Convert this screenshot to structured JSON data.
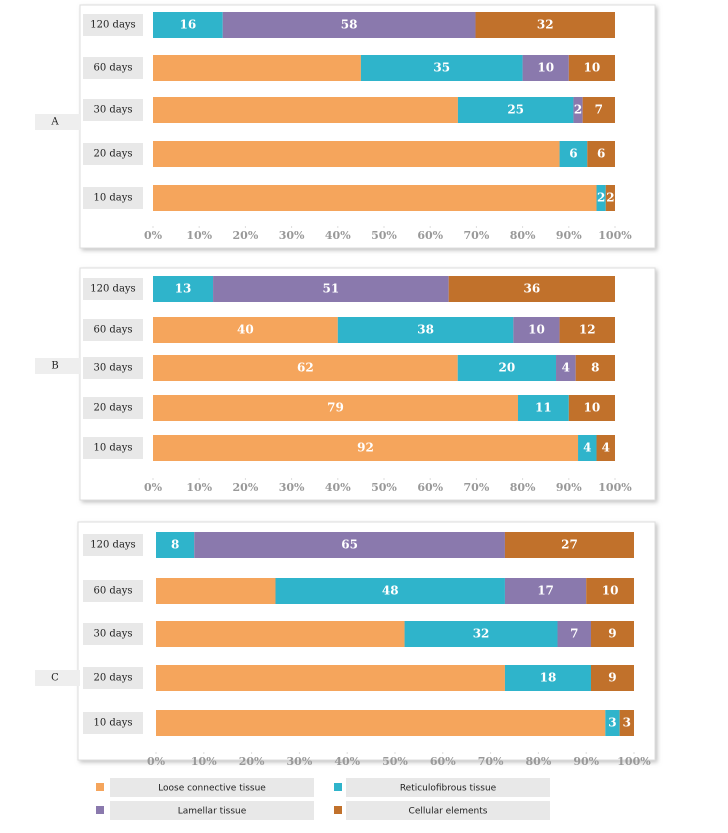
{
  "chart_data": [
    {
      "type": "bar",
      "orientation": "horizontal",
      "stacked": "percent",
      "label": "A",
      "categories": [
        "120 days",
        "60 days",
        "30 days",
        "20 days",
        "10 days"
      ],
      "series": [
        {
          "name": "Loose connective tissue",
          "color": "#f5a55c",
          "values": [
            0,
            45,
            66,
            88,
            96
          ],
          "value_labels": [
            null,
            null,
            null,
            null,
            null
          ]
        },
        {
          "name": "Reticulofibrous tissue",
          "color": "#2fb4cb",
          "values": [
            16,
            35,
            25,
            6,
            2
          ],
          "value_labels": [
            "16",
            "35",
            "25",
            "6",
            "2"
          ]
        },
        {
          "name": "Lamellar tissue",
          "color": "#8a79ad",
          "values": [
            58,
            10,
            2,
            0,
            0
          ],
          "value_labels": [
            "58",
            "10",
            "2",
            null,
            null
          ]
        },
        {
          "name": "Cellular elements",
          "color": "#c1712b",
          "values": [
            32,
            10,
            7,
            6,
            2
          ],
          "value_labels": [
            "32",
            "10",
            "7",
            "6",
            "2"
          ]
        }
      ],
      "xlim": [
        0,
        100
      ],
      "xticks": [
        {
          "value": 0,
          "label": "0%"
        },
        {
          "value": 10,
          "label": "10%"
        },
        {
          "value": 20,
          "label": "20%"
        },
        {
          "value": 30,
          "label": "30%"
        },
        {
          "value": 40,
          "label": "40%"
        },
        {
          "value": 50,
          "label": "50%"
        },
        {
          "value": 60,
          "label": "60%"
        },
        {
          "value": 70,
          "label": "70%"
        },
        {
          "value": 80,
          "label": "80%"
        },
        {
          "value": 90,
          "label": "90%"
        },
        {
          "value": 100,
          "label": "100%"
        }
      ]
    },
    {
      "type": "bar",
      "orientation": "horizontal",
      "stacked": "percent",
      "label": "B",
      "categories": [
        "120 days",
        "60 days",
        "30 days",
        "20 days",
        "10 days"
      ],
      "series": [
        {
          "name": "Loose connective tissue",
          "color": "#f5a55c",
          "values": [
            0,
            40,
            62,
            79,
            92
          ],
          "value_labels": [
            null,
            "40",
            "62",
            "79",
            "92"
          ]
        },
        {
          "name": "Reticulofibrous tissue",
          "color": "#2fb4cb",
          "values": [
            13,
            38,
            20,
            11,
            4
          ],
          "value_labels": [
            "13",
            "38",
            "20",
            "11",
            "4"
          ]
        },
        {
          "name": "Lamellar tissue",
          "color": "#8a79ad",
          "values": [
            51,
            10,
            4,
            0,
            0
          ],
          "value_labels": [
            "51",
            "10",
            "4",
            null,
            null
          ]
        },
        {
          "name": "Cellular elements",
          "color": "#c1712b",
          "values": [
            36,
            12,
            8,
            10,
            4
          ],
          "value_labels": [
            "36",
            "12",
            "8",
            "10",
            "4"
          ]
        }
      ],
      "xlim": [
        0,
        100
      ],
      "xticks": [
        {
          "value": 0,
          "label": "0%"
        },
        {
          "value": 10,
          "label": "10%"
        },
        {
          "value": 20,
          "label": "20%"
        },
        {
          "value": 30,
          "label": "30%"
        },
        {
          "value": 40,
          "label": "40%"
        },
        {
          "value": 50,
          "label": "50%"
        },
        {
          "value": 60,
          "label": "60%"
        },
        {
          "value": 70,
          "label": "70%"
        },
        {
          "value": 80,
          "label": "80%"
        },
        {
          "value": 90,
          "label": "90%"
        },
        {
          "value": 100,
          "label": "100%"
        }
      ]
    },
    {
      "type": "bar",
      "orientation": "horizontal",
      "stacked": "percent",
      "label": "C",
      "categories": [
        "120 days",
        "60 days",
        "30 days",
        "20 days",
        "10 days"
      ],
      "series": [
        {
          "name": "Loose connective tissue",
          "color": "#f5a55c",
          "values": [
            0,
            25,
            52,
            73,
            94
          ],
          "value_labels": [
            null,
            null,
            null,
            null,
            null
          ]
        },
        {
          "name": "Reticulofibrous tissue",
          "color": "#2fb4cb",
          "values": [
            8,
            48,
            32,
            18,
            3
          ],
          "value_labels": [
            "8",
            "48",
            "32",
            "18",
            "3"
          ]
        },
        {
          "name": "Lamellar tissue",
          "color": "#8a79ad",
          "values": [
            65,
            17,
            7,
            0,
            0
          ],
          "value_labels": [
            "65",
            "17",
            "7",
            null,
            null
          ]
        },
        {
          "name": "Cellular elements",
          "color": "#c1712b",
          "values": [
            27,
            10,
            9,
            9,
            3
          ],
          "value_labels": [
            "27",
            "10",
            "9",
            "9",
            "3"
          ]
        }
      ],
      "xlim": [
        0,
        100
      ],
      "xticks": [
        {
          "value": 0,
          "label": "0%"
        },
        {
          "value": 10,
          "label": "10%"
        },
        {
          "value": 20,
          "label": "20%"
        },
        {
          "value": 30,
          "label": "30%"
        },
        {
          "value": 40,
          "label": "40%"
        },
        {
          "value": 50,
          "label": "50%"
        },
        {
          "value": 60,
          "label": "60%"
        },
        {
          "value": 70,
          "label": "70%"
        },
        {
          "value": 80,
          "label": "80%"
        },
        {
          "value": 90,
          "label": "90%"
        },
        {
          "value": 100,
          "label": "100%"
        }
      ]
    }
  ]
}
